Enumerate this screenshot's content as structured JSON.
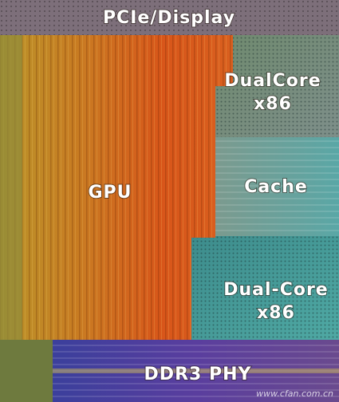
{
  "die": {
    "pcie": "PCIe/Display",
    "gpu": "GPU",
    "cpu_top": [
      "DualCore",
      "x86"
    ],
    "cache": "Cache",
    "cpu_bottom": [
      "Dual-Core",
      "x86"
    ],
    "ddr": "DDR3 PHY"
  },
  "watermark": "www.cfan.com.cn"
}
